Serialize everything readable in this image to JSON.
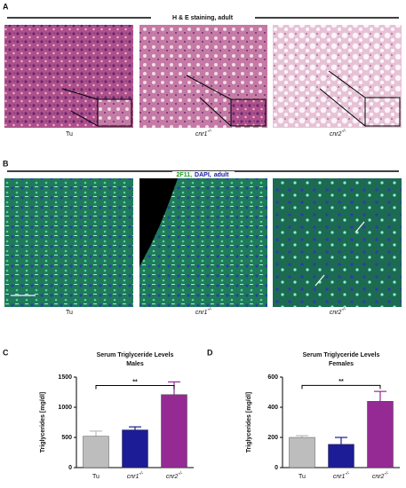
{
  "panels": {
    "A": {
      "letter": "A",
      "title": "H & E staining, adult",
      "labels": [
        {
          "text": "Tu"
        },
        {
          "text": "cnr1",
          "sup": "-/-"
        },
        {
          "text": "cnr2",
          "sup": "-/-"
        }
      ]
    },
    "B": {
      "letter": "B",
      "title": [
        {
          "text": "2F11,",
          "color": "#1a9a1a"
        },
        {
          "text": "DAPI,",
          "color": "#1a1aa0"
        },
        {
          "text": "adult",
          "color": "#1a1aa0"
        }
      ],
      "labels": [
        {
          "text": "Tu"
        },
        {
          "text": "cnr1",
          "sup": "-/-"
        },
        {
          "text": "cnr2",
          "sup": "-/-"
        }
      ]
    }
  },
  "chart_data": [
    {
      "type": "bar",
      "letter": "C",
      "title": [
        "Serum Triglyceride Levels",
        "Males"
      ],
      "ylabel": "Triglycerides [mg/dl]",
      "categories": [
        {
          "text": "Tu"
        },
        {
          "text": "cnr1",
          "sup": "-/-"
        },
        {
          "text": "cnr2",
          "sup": "-/-"
        }
      ],
      "values": [
        520,
        625,
        1210
      ],
      "errors": [
        85,
        50,
        210
      ],
      "colors": [
        "#bdbdbd",
        "#1c1c96",
        "#952a95"
      ],
      "ylim": [
        0,
        1500
      ],
      "yticks": [
        0,
        500,
        1000,
        1500
      ],
      "annotations": [
        {
          "text": "**",
          "from": 0,
          "to": 2,
          "y": 1360
        }
      ]
    },
    {
      "type": "bar",
      "letter": "D",
      "title": [
        "Serum Triglyceride Levels",
        "Females"
      ],
      "ylabel": "Triglycerides [mg/dl]",
      "categories": [
        {
          "text": "Tu"
        },
        {
          "text": "cnr1",
          "sup": "-/-"
        },
        {
          "text": "cnr2",
          "sup": "-/-"
        }
      ],
      "values": [
        200,
        155,
        440
      ],
      "errors": [
        12,
        45,
        65
      ],
      "colors": [
        "#bdbdbd",
        "#1c1c96",
        "#952a95"
      ],
      "ylim": [
        0,
        600
      ],
      "yticks": [
        0,
        200,
        400,
        600
      ],
      "annotations": [
        {
          "text": "**",
          "from": 0,
          "to": 2,
          "y": 545
        }
      ]
    }
  ]
}
